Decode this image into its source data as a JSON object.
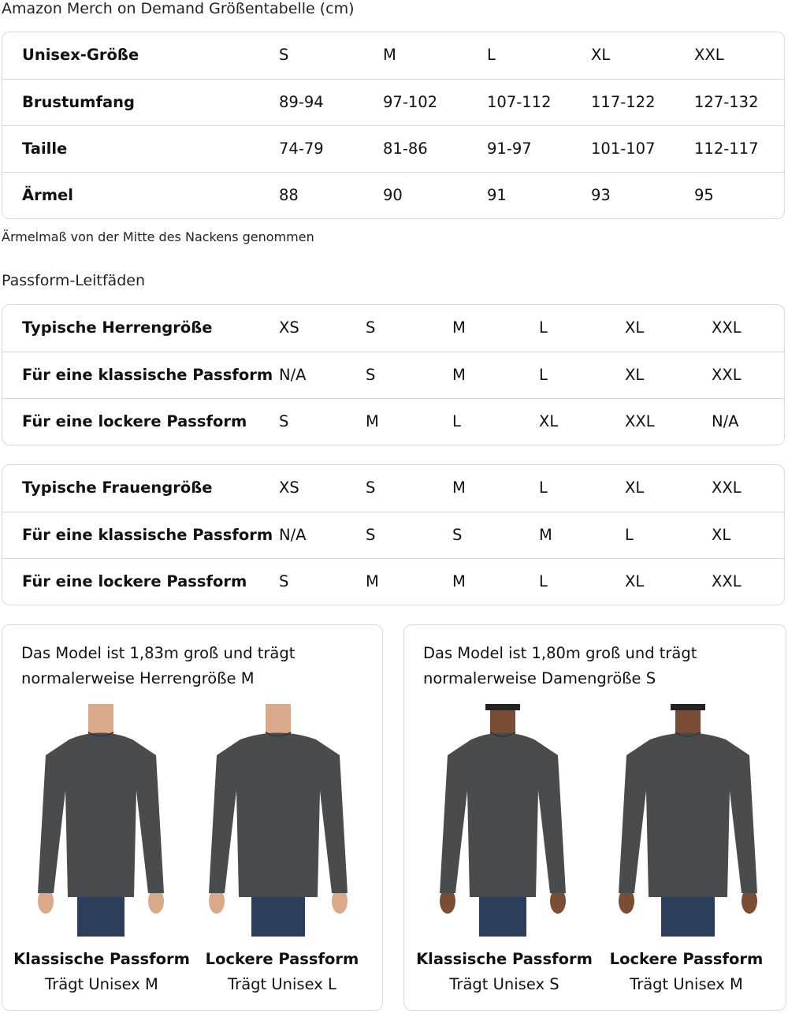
{
  "size_chart": {
    "title": "Amazon Merch on Demand Größentabelle (cm)",
    "rows": [
      {
        "label": "Unisex-Größe",
        "values": [
          "S",
          "M",
          "L",
          "XL",
          "XXL"
        ]
      },
      {
        "label": "Brustumfang",
        "values": [
          "89-94",
          "97-102",
          "107-112",
          "117-122",
          "127-132"
        ]
      },
      {
        "label": "Taille",
        "values": [
          "74-79",
          "81-86",
          "91-97",
          "101-107",
          "112-117"
        ]
      },
      {
        "label": "Ärmel",
        "values": [
          "88",
          "90",
          "91",
          "93",
          "95"
        ]
      }
    ],
    "note": "Ärmelmaß von der Mitte des Nackens genommen"
  },
  "fit_guides": {
    "title": "Passform-Leitfäden",
    "men": [
      {
        "label": "Typische Herrengröße",
        "values": [
          "XS",
          "S",
          "M",
          "L",
          "XL",
          "XXL"
        ]
      },
      {
        "label": "Für eine klassische Passform",
        "values": [
          "N/A",
          "S",
          "M",
          "L",
          "XL",
          "XXL"
        ]
      },
      {
        "label": "Für eine lockere Passform",
        "values": [
          "S",
          "M",
          "L",
          "XL",
          "XXL",
          "N/A"
        ]
      }
    ],
    "women": [
      {
        "label": "Typische Frauengröße",
        "values": [
          "XS",
          "S",
          "M",
          "L",
          "XL",
          "XXL"
        ]
      },
      {
        "label": "Für eine klassische Passform",
        "values": [
          "N/A",
          "S",
          "S",
          "M",
          "L",
          "XL"
        ]
      },
      {
        "label": "Für eine lockere Passform",
        "values": [
          "S",
          "M",
          "M",
          "L",
          "XL",
          "XXL"
        ]
      }
    ]
  },
  "models": [
    {
      "line1": "Das Model ist 1,83m groß und trägt",
      "line2": "normalerweise Herrengröße M",
      "gender": "male",
      "photos": [
        {
          "fit": "Klassische Passform",
          "wears": "Trägt Unisex M"
        },
        {
          "fit": "Lockere Passform",
          "wears": "Trägt Unisex L"
        }
      ]
    },
    {
      "line1": "Das Model ist 1,80m groß und trägt",
      "line2": "normalerweise Damengröße S",
      "gender": "female",
      "photos": [
        {
          "fit": "Klassische Passform",
          "wears": "Trägt Unisex S"
        },
        {
          "fit": "Lockere Passform",
          "wears": "Trägt Unisex M"
        }
      ]
    }
  ],
  "colors": {
    "border": "#d5d9d9",
    "shirt": "#4a4b4d",
    "jeans": "#2b3f5c",
    "skin_male": "#d9a98a",
    "skin_female": "#7a4e35"
  }
}
